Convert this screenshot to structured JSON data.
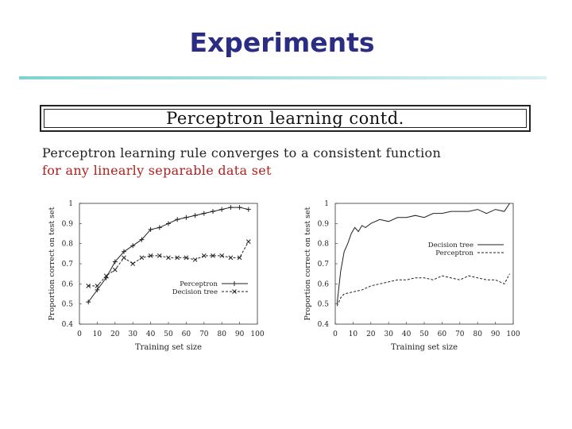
{
  "slide": {
    "title": "Experiments"
  },
  "boxed_title": "Perceptron learning contd.",
  "statement": {
    "line1": "Perceptron learning rule converges to a consistent function",
    "line2": "for any linearly separable data set"
  },
  "chart_data": [
    {
      "type": "line",
      "title": "",
      "xlabel": "Training set size",
      "ylabel": "Proportion correct on test set",
      "xlim": [
        0,
        100
      ],
      "ylim": [
        0.4,
        1
      ],
      "xticks": [
        "0",
        "10",
        "20",
        "30",
        "40",
        "50",
        "60",
        "70",
        "80",
        "90",
        "100"
      ],
      "yticks": [
        "0.4",
        "0.5",
        "0.6",
        "0.7",
        "0.8",
        "0.9",
        "1"
      ],
      "legend_position": "lower-right",
      "series": [
        {
          "name": "Perceptron",
          "marker": "+",
          "line_style": "solid",
          "x": [
            5,
            10,
            15,
            20,
            25,
            30,
            35,
            40,
            45,
            50,
            55,
            60,
            65,
            70,
            75,
            80,
            85,
            90,
            95
          ],
          "y": [
            0.51,
            0.57,
            0.63,
            0.71,
            0.76,
            0.79,
            0.82,
            0.87,
            0.88,
            0.9,
            0.92,
            0.93,
            0.94,
            0.95,
            0.96,
            0.97,
            0.98,
            0.98,
            0.97
          ]
        },
        {
          "name": "Decision tree",
          "marker": "x",
          "line_style": "dashed",
          "x": [
            5,
            10,
            15,
            20,
            25,
            30,
            35,
            40,
            45,
            50,
            55,
            60,
            65,
            70,
            75,
            80,
            85,
            90,
            95
          ],
          "y": [
            0.59,
            0.59,
            0.64,
            0.67,
            0.73,
            0.7,
            0.73,
            0.74,
            0.74,
            0.73,
            0.73,
            0.73,
            0.72,
            0.74,
            0.74,
            0.74,
            0.73,
            0.73,
            0.81
          ]
        }
      ]
    },
    {
      "type": "line",
      "title": "",
      "xlabel": "Training set size",
      "ylabel": "Proportion correct on test set",
      "xlim": [
        0,
        100
      ],
      "ylim": [
        0.4,
        1
      ],
      "xticks": [
        "0",
        "10",
        "20",
        "30",
        "40",
        "50",
        "60",
        "70",
        "80",
        "90",
        "100"
      ],
      "yticks": [
        "0.4",
        "0.5",
        "0.6",
        "0.7",
        "0.8",
        "0.9",
        "1"
      ],
      "legend_position": "center-right",
      "series": [
        {
          "name": "Decision tree",
          "line_style": "solid",
          "x": [
            1,
            3,
            5,
            7,
            9,
            11,
            13,
            15,
            17,
            20,
            25,
            30,
            35,
            40,
            45,
            50,
            55,
            60,
            65,
            70,
            75,
            80,
            85,
            90,
            95,
            98
          ],
          "y": [
            0.5,
            0.66,
            0.76,
            0.8,
            0.85,
            0.88,
            0.86,
            0.89,
            0.88,
            0.9,
            0.92,
            0.91,
            0.93,
            0.93,
            0.94,
            0.93,
            0.95,
            0.95,
            0.96,
            0.96,
            0.96,
            0.97,
            0.95,
            0.97,
            0.96,
            1.0
          ]
        },
        {
          "name": "Perceptron",
          "line_style": "dashed",
          "x": [
            1,
            3,
            5,
            10,
            15,
            20,
            25,
            30,
            35,
            40,
            45,
            50,
            55,
            60,
            65,
            70,
            75,
            80,
            85,
            90,
            95,
            98
          ],
          "y": [
            0.49,
            0.53,
            0.55,
            0.56,
            0.57,
            0.59,
            0.6,
            0.61,
            0.62,
            0.62,
            0.63,
            0.63,
            0.62,
            0.64,
            0.63,
            0.62,
            0.64,
            0.63,
            0.62,
            0.62,
            0.6,
            0.65
          ]
        }
      ]
    }
  ]
}
